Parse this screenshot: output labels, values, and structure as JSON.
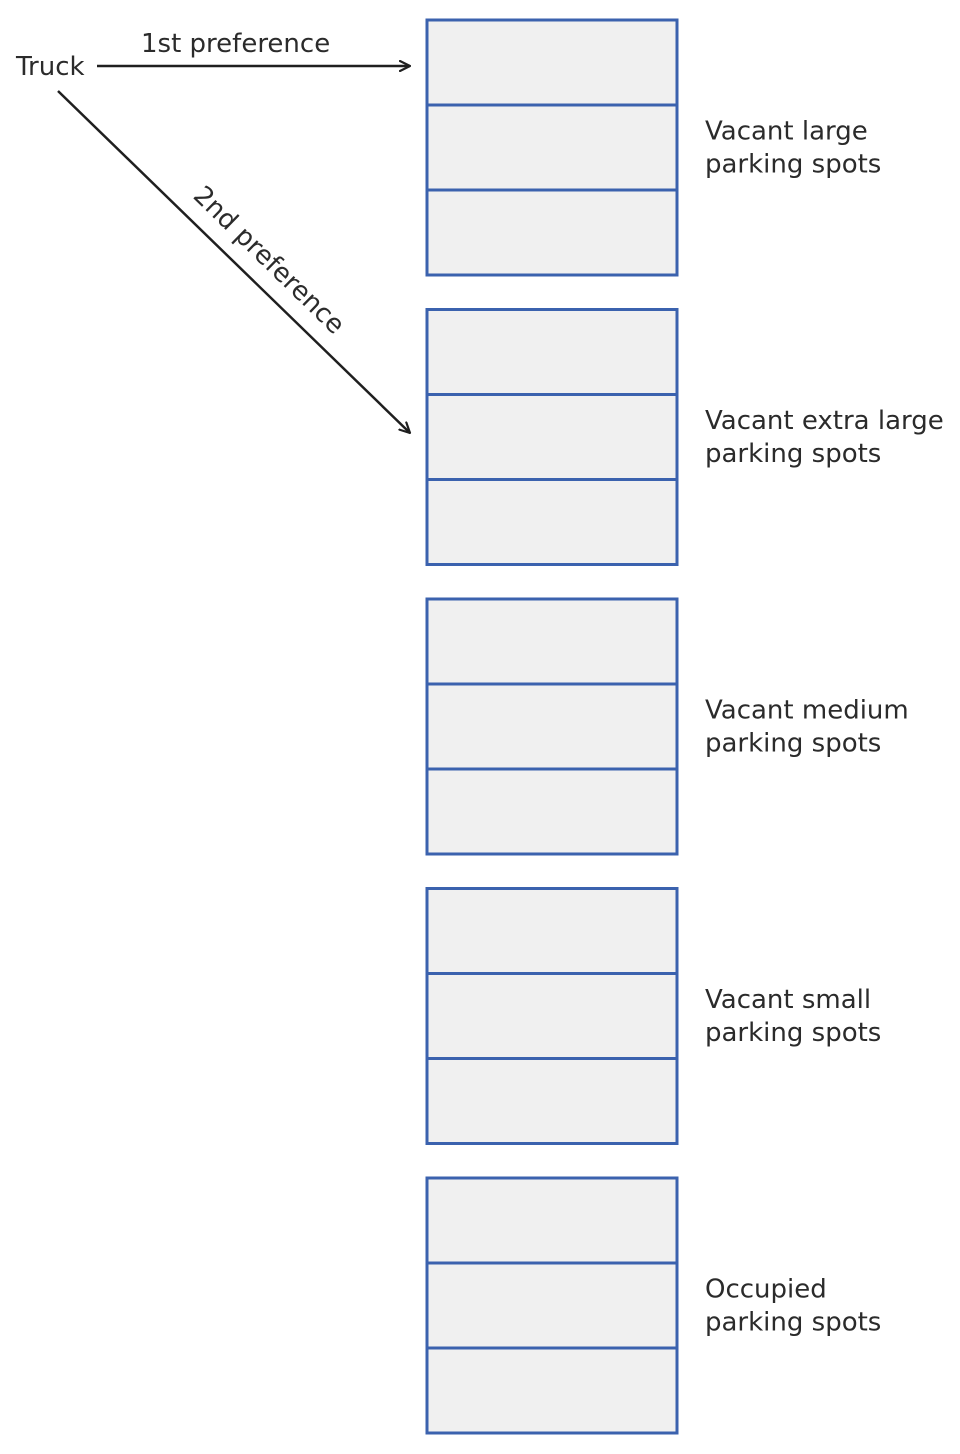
{
  "source": {
    "label": "Truck"
  },
  "arrows": [
    {
      "id": "first",
      "label": "1st preference",
      "target_group": 0
    },
    {
      "id": "second",
      "label": "2nd preference",
      "target_group": 1
    }
  ],
  "groups": [
    {
      "line1": "Vacant large",
      "line2": "parking spots",
      "slots": 3
    },
    {
      "line1": "Vacant extra large",
      "line2": "parking spots",
      "slots": 3
    },
    {
      "line1": "Vacant medium",
      "line2": "parking spots",
      "slots": 3
    },
    {
      "line1": "Vacant small",
      "line2": "parking spots",
      "slots": 3
    },
    {
      "line1": "Occupied",
      "line2": "parking spots",
      "slots": 3
    }
  ],
  "colors": {
    "slot_border": "#3b62ae",
    "slot_fill": "#f0f0f0",
    "arrow": "#1f1f1f",
    "text": "#2b2b2b"
  }
}
